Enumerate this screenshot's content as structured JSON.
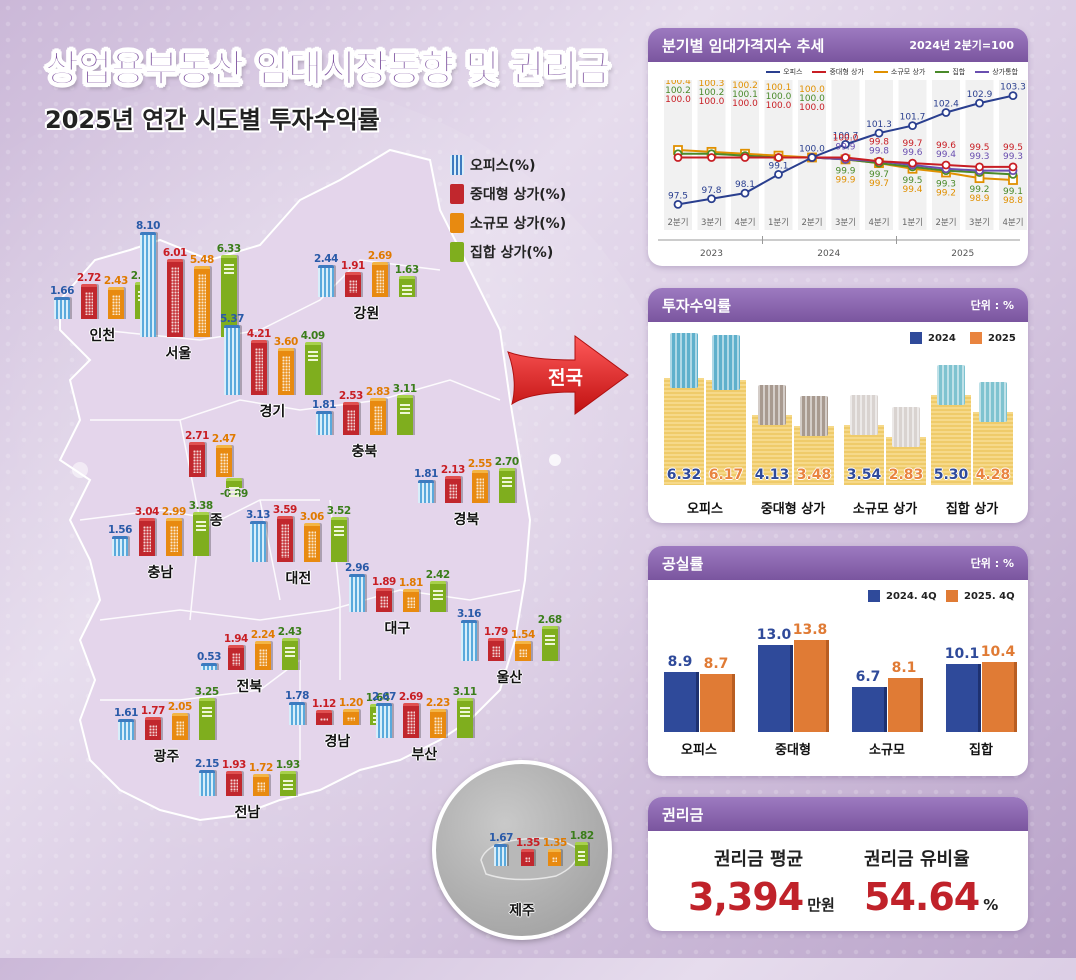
{
  "header": {
    "title": "상업용부동산 임대시장동향 및 권리금",
    "subtitle": "2025년 연간 시도별 투자수익률"
  },
  "colors": {
    "office": "#2a5aa8",
    "mid_retail": "#c81e24",
    "small_retail": "#e07a00",
    "collective": "#3a7d1a",
    "retail_total": "#6a4fb0",
    "panel_header": "#7a559f",
    "y2024": "#2f4a9a",
    "y2025": "#e07b35",
    "premium_value": "#c0222a"
  },
  "map_legend": [
    {
      "key": "office",
      "label": "오피스(%)"
    },
    {
      "key": "mid",
      "label": "중대형 상가(%)"
    },
    {
      "key": "small",
      "label": "소규모 상가(%)"
    },
    {
      "key": "coll",
      "label": "집합 상가(%)"
    }
  ],
  "national_arrow": {
    "label": "전국"
  },
  "regions": [
    {
      "name": "인천",
      "office": "1.66",
      "mid": "2.72",
      "small": "2.43",
      "coll": "2.82"
    },
    {
      "name": "서울",
      "office": "8.10",
      "mid": "6.01",
      "small": "5.48",
      "coll": "6.33"
    },
    {
      "name": "강원",
      "office": "2.44",
      "mid": "1.91",
      "small": "2.69",
      "coll": "1.63"
    },
    {
      "name": "경기",
      "office": "5.37",
      "mid": "4.21",
      "small": "3.60",
      "coll": "4.09"
    },
    {
      "name": "충북",
      "office": "1.81",
      "mid": "2.53",
      "small": "2.83",
      "coll": "3.11"
    },
    {
      "name": "세종",
      "office": "",
      "mid": "2.71",
      "small": "2.47",
      "coll": "-0.89"
    },
    {
      "name": "경북",
      "office": "1.81",
      "mid": "2.13",
      "small": "2.55",
      "coll": "2.70"
    },
    {
      "name": "충남",
      "office": "1.56",
      "mid": "3.04",
      "small": "2.99",
      "coll": "3.38"
    },
    {
      "name": "대전",
      "office": "3.13",
      "mid": "3.59",
      "small": "3.06",
      "coll": "3.52"
    },
    {
      "name": "대구",
      "office": "2.96",
      "mid": "1.89",
      "small": "1.81",
      "coll": "2.42"
    },
    {
      "name": "울산",
      "office": "3.16",
      "mid": "1.79",
      "small": "1.54",
      "coll": "2.68"
    },
    {
      "name": "전북",
      "office": "0.53",
      "mid": "1.94",
      "small": "2.24",
      "coll": "2.43"
    },
    {
      "name": "광주",
      "office": "1.61",
      "mid": "1.77",
      "small": "2.05",
      "coll": "3.25"
    },
    {
      "name": "경남",
      "office": "1.78",
      "mid": "1.12",
      "small": "1.20",
      "coll": "1.64"
    },
    {
      "name": "부산",
      "office": "2.67",
      "mid": "2.69",
      "small": "2.23",
      "coll": "3.11"
    },
    {
      "name": "전남",
      "office": "2.15",
      "mid": "1.93",
      "small": "1.72",
      "coll": "1.93"
    },
    {
      "name": "제주",
      "office": "1.67",
      "mid": "1.35",
      "small": "1.35",
      "coll": "1.82"
    }
  ],
  "panels": {
    "rent_index": {
      "title": "분기별 임대가격지수 추세",
      "note": "2024년 2분기=100"
    },
    "investment": {
      "title": "투자수익률",
      "unit": "단위 : %",
      "legend": [
        "2024",
        "2025"
      ]
    },
    "vacancy": {
      "title": "공실률",
      "unit": "단위 : %",
      "legend": [
        "2024. 4Q",
        "2025. 4Q"
      ]
    },
    "premium": {
      "title": "권리금",
      "avg_label": "권리금 평균",
      "avg_value": "3,394",
      "avg_unit": "만원",
      "ratio_label": "권리금 유비율",
      "ratio_value": "54.64",
      "ratio_unit": "%"
    }
  },
  "chart_data": [
    {
      "type": "bar",
      "title": "2025년 연간 시도별 투자수익률",
      "ylabel": "%",
      "categories": [
        "인천",
        "서울",
        "강원",
        "경기",
        "충북",
        "세종",
        "경북",
        "충남",
        "대전",
        "대구",
        "울산",
        "전북",
        "광주",
        "경남",
        "부산",
        "전남",
        "제주"
      ],
      "series": [
        {
          "name": "오피스(%)",
          "values": [
            1.66,
            8.1,
            2.44,
            5.37,
            1.81,
            null,
            1.81,
            1.56,
            3.13,
            2.96,
            3.16,
            0.53,
            1.61,
            1.78,
            2.67,
            2.15,
            1.67
          ]
        },
        {
          "name": "중대형 상가(%)",
          "values": [
            2.72,
            6.01,
            1.91,
            4.21,
            2.53,
            2.71,
            2.13,
            3.04,
            3.59,
            1.89,
            1.79,
            1.94,
            1.77,
            1.12,
            2.69,
            1.93,
            1.35
          ]
        },
        {
          "name": "소규모 상가(%)",
          "values": [
            2.43,
            5.48,
            2.69,
            3.6,
            2.83,
            2.47,
            2.55,
            2.99,
            3.06,
            1.81,
            1.54,
            2.24,
            2.05,
            1.2,
            2.23,
            1.72,
            1.35
          ]
        },
        {
          "name": "집합 상가(%)",
          "values": [
            2.82,
            6.33,
            1.63,
            4.09,
            3.11,
            -0.89,
            2.7,
            3.38,
            3.52,
            2.42,
            2.68,
            2.43,
            3.25,
            1.64,
            3.11,
            1.93,
            1.82
          ]
        }
      ]
    },
    {
      "type": "line",
      "title": "분기별 임대가격지수 추세",
      "subtitle": "2024년 2분기=100",
      "x": [
        "2023 2분기",
        "2023 3분기",
        "2023 4분기",
        "2024 1분기",
        "2024 2분기",
        "2024 3분기",
        "2024 4분기",
        "2025 1분기",
        "2025 2분기",
        "2025 3분기",
        "2025 4분기"
      ],
      "tick_labels": [
        "2분기",
        "3분기",
        "4분기",
        "1분기",
        "2분기",
        "3분기",
        "4분기",
        "1분기",
        "2분기",
        "3분기",
        "4분기"
      ],
      "year_groups": [
        {
          "label": "2023",
          "span": 3
        },
        {
          "label": "2024",
          "span": 4
        },
        {
          "label": "2025",
          "span": 4
        }
      ],
      "legend_position": "top-right",
      "series": [
        {
          "name": "오피스",
          "color": "#2a3f8f",
          "values": [
            97.5,
            97.8,
            98.1,
            99.1,
            100.0,
            100.7,
            101.3,
            101.7,
            102.4,
            102.9,
            103.3
          ]
        },
        {
          "name": "중대형 상가",
          "color": "#c81e24",
          "values": [
            100.0,
            100.0,
            100.0,
            100.0,
            100.0,
            100.0,
            99.8,
            99.7,
            99.6,
            99.5,
            99.5
          ]
        },
        {
          "name": "소규모 상가",
          "color": "#e09000",
          "values": [
            100.4,
            100.3,
            100.2,
            100.1,
            100.0,
            99.9,
            99.7,
            99.4,
            99.2,
            98.9,
            98.8
          ]
        },
        {
          "name": "집합",
          "color": "#4a8a2a",
          "values": [
            100.2,
            100.2,
            100.1,
            100.0,
            100.0,
            99.9,
            99.7,
            99.5,
            99.3,
            99.2,
            99.1
          ]
        },
        {
          "name": "상가통합",
          "color": "#6a4fb0",
          "values": [
            null,
            null,
            null,
            null,
            100.0,
            99.9,
            99.8,
            99.6,
            99.4,
            99.3,
            99.3
          ]
        }
      ],
      "ylim": [
        97,
        104
      ],
      "grid": false
    },
    {
      "type": "bar",
      "title": "투자수익률",
      "ylabel": "단위 : %",
      "categories": [
        "오피스",
        "중대형 상가",
        "소규모 상가",
        "집합 상가"
      ],
      "series": [
        {
          "name": "2024",
          "values": [
            6.32,
            4.13,
            3.54,
            5.3
          ]
        },
        {
          "name": "2025",
          "values": [
            6.17,
            3.48,
            2.83,
            4.28
          ]
        }
      ]
    },
    {
      "type": "bar",
      "title": "공실률",
      "ylabel": "단위 : %",
      "categories": [
        "오피스",
        "중대형",
        "소규모",
        "집합"
      ],
      "series": [
        {
          "name": "2024. 4Q",
          "values": [
            8.9,
            13.0,
            6.7,
            10.1
          ]
        },
        {
          "name": "2025. 4Q",
          "values": [
            8.7,
            13.8,
            8.1,
            10.4
          ]
        }
      ],
      "legend_position": "top-right"
    }
  ],
  "investment_labels": {
    "values_2024": [
      "6.32",
      "4.13",
      "3.54",
      "5.30"
    ],
    "values_2025": [
      "6.17",
      "3.48",
      "2.83",
      "4.28"
    ],
    "categories": [
      "오피스",
      "중대형 상가",
      "소규모 상가",
      "집합 상가"
    ]
  },
  "vacancy_labels": {
    "values_2024": [
      "8.9",
      "13.0",
      "6.7",
      "10.1"
    ],
    "values_2025": [
      "8.7",
      "13.8",
      "8.1",
      "10.4"
    ],
    "categories": [
      "오피스",
      "중대형",
      "소규모",
      "집합"
    ]
  }
}
